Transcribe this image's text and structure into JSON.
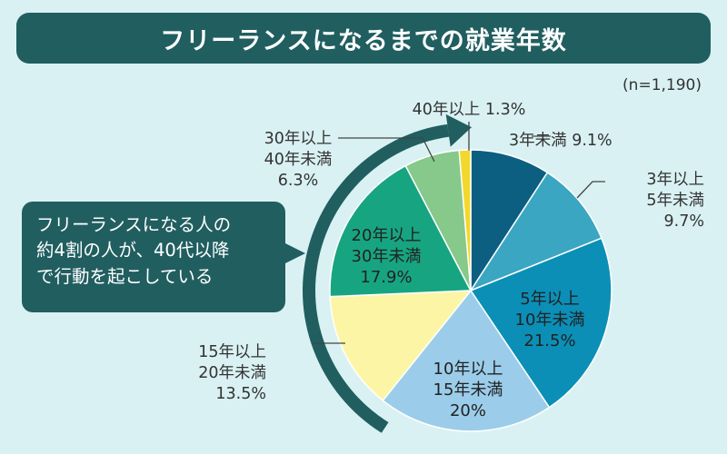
{
  "header": {
    "title": "フリーランスになるまでの就業年数",
    "sample_note": "(n=1,190)"
  },
  "callout": {
    "lines": [
      "フリーランスになる人の",
      "約4割の人が、40代以降",
      "で行動を起こしている"
    ]
  },
  "colors": {
    "background": "#d9f1f3",
    "header_bg": "#215e60",
    "arrow": "#215e60"
  },
  "chart_data": {
    "type": "pie",
    "title": "フリーランスになるまでの就業年数",
    "start_angle_deg": 0,
    "direction": "clockwise",
    "slices": [
      {
        "label_lines": [
          "3年未満 9.1%"
        ],
        "value": 9.1,
        "color": "#0d5f82",
        "label_placement": "outside"
      },
      {
        "label_lines": [
          "3年以上",
          "5年未満",
          "9.7%"
        ],
        "value": 9.7,
        "color": "#3aa6c2",
        "label_placement": "outside"
      },
      {
        "label_lines": [
          "5年以上",
          "10年未満",
          "21.5%"
        ],
        "value": 21.5,
        "color": "#0b8fb7",
        "label_placement": "inside"
      },
      {
        "label_lines": [
          "10年以上",
          "15年未満",
          "20%"
        ],
        "value": 20.0,
        "color": "#9bcdea",
        "label_placement": "inside"
      },
      {
        "label_lines": [
          "15年以上",
          "20年未満",
          "13.5%"
        ],
        "value": 13.5,
        "color": "#fdf5a6",
        "label_placement": "outside"
      },
      {
        "label_lines": [
          "20年以上",
          "30年未満",
          "17.9%"
        ],
        "value": 17.9,
        "color": "#17a581",
        "label_placement": "inside"
      },
      {
        "label_lines": [
          "30年以上",
          "40年未満",
          "6.3%"
        ],
        "value": 6.3,
        "color": "#86c98a",
        "label_placement": "outside"
      },
      {
        "label_lines": [
          "40年以上 1.3%"
        ],
        "value": 1.3,
        "color": "#f2d82c",
        "label_placement": "outside"
      }
    ]
  }
}
